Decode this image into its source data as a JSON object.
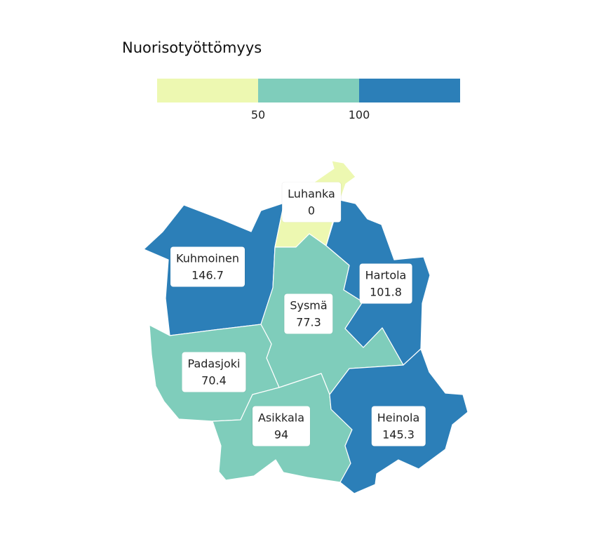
{
  "legend": {
    "title": "Nuorisotyöttömyys",
    "thresholds": [
      50,
      100
    ],
    "tick_labels": [
      "50",
      "100"
    ],
    "colors": [
      "#edf8b1",
      "#7fcdbb",
      "#2c7fb8"
    ]
  },
  "regions": [
    {
      "name": "Luhanka",
      "value": "0",
      "color": "#edf8b1"
    },
    {
      "name": "Kuhmoinen",
      "value": "146.7",
      "color": "#2c7fb8"
    },
    {
      "name": "Hartola",
      "value": "101.8",
      "color": "#2c7fb8"
    },
    {
      "name": "Sysmä",
      "value": "77.3",
      "color": "#7fcdbb"
    },
    {
      "name": "Padasjoki",
      "value": "70.4",
      "color": "#7fcdbb"
    },
    {
      "name": "Asikkala",
      "value": "94",
      "color": "#7fcdbb"
    },
    {
      "name": "Heinola",
      "value": "145.3",
      "color": "#2c7fb8"
    }
  ]
}
